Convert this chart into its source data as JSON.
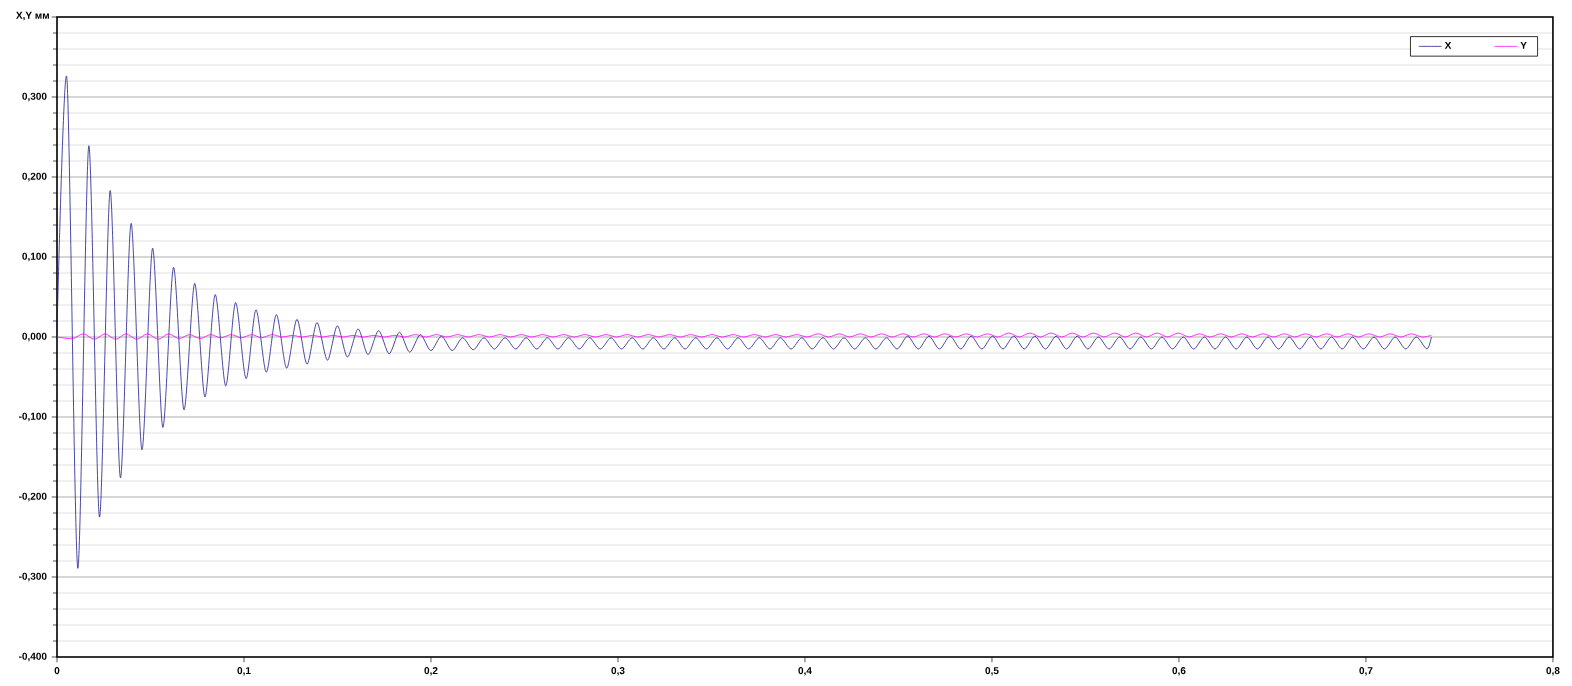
{
  "chart_data": {
    "type": "line",
    "ylabel": "X,Y мм",
    "xlim": [
      0,
      0.8
    ],
    "ylim": [
      -0.4,
      0.4
    ],
    "xticks": [
      0,
      {
        "value": 0.1,
        "label": "0,1"
      },
      {
        "value": 0.2,
        "label": "0,2"
      },
      {
        "value": 0.3,
        "label": "0,3"
      },
      {
        "value": 0.4,
        "label": "0,4"
      },
      {
        "value": 0.5,
        "label": "0,5"
      },
      {
        "value": 0.6,
        "label": "0,6"
      },
      {
        "value": 0.7,
        "label": "0,7"
      },
      {
        "value": 0.8,
        "label": "0,8"
      }
    ],
    "yticks": [
      {
        "value": -0.4,
        "label": "-0,400"
      },
      {
        "value": -0.3,
        "label": "-0,300"
      },
      {
        "value": -0.2,
        "label": "-0,200"
      },
      {
        "value": -0.1,
        "label": "-0,100"
      },
      {
        "value": 0,
        "label": "0,000"
      },
      {
        "value": 0.1,
        "label": "0,100"
      },
      {
        "value": 0.2,
        "label": "0,200"
      },
      {
        "value": 0.3,
        "label": "0,300"
      },
      {
        "value": 0.4,
        "label": null
      }
    ],
    "grid": "y",
    "legend": "top right",
    "marker": "none",
    "line_style": "solid",
    "series": [
      {
        "name": "X",
        "color": "#1a1a8c",
        "x": [
          0,
          0.0053,
          0.0111,
          0.017,
          0.0227,
          0.0284,
          0.0339,
          0.0396,
          0.0454,
          0.0511,
          0.0566,
          0.0623,
          0.0679,
          0.0736,
          0.0791,
          0.0846,
          0.0902,
          0.0955,
          0.1011,
          0.1064,
          0.1119,
          0.1173,
          0.1228,
          0.1283,
          0.1337,
          0.139,
          0.1446,
          0.1499,
          0.1553,
          0.161,
          0.1663,
          0.172,
          0.1776,
          0.1831,
          0.1886,
          0.1943,
          0.1999,
          0.2056,
          0.2113,
          0.2169,
          0.2226,
          0.2283,
          0.2339,
          0.2396,
          0.2453,
          0.2509,
          0.2566,
          0.2623,
          0.2679,
          0.2736,
          0.2793,
          0.2849,
          0.2906,
          0.2963,
          0.3019,
          0.3076,
          0.3133,
          0.3189,
          0.3246,
          0.3303,
          0.3359,
          0.3416,
          0.3473,
          0.3529,
          0.3586,
          0.3643,
          0.3699,
          0.3756,
          0.3813,
          0.3869,
          0.3926,
          0.3983,
          0.4039,
          0.4096,
          0.4153,
          0.4209,
          0.4266,
          0.4323,
          0.4379,
          0.4436,
          0.4493,
          0.4549,
          0.4606,
          0.4663,
          0.4719,
          0.4776,
          0.4833,
          0.4889,
          0.4946,
          0.5003,
          0.5059,
          0.5116,
          0.5173,
          0.5229,
          0.5286,
          0.5343,
          0.5399,
          0.5456,
          0.5513,
          0.5569,
          0.5626,
          0.5683,
          0.5739,
          0.5796,
          0.5853,
          0.5909,
          0.5966,
          0.6023,
          0.6079,
          0.6136,
          0.6193,
          0.6249,
          0.6306,
          0.6363,
          0.6419,
          0.6476,
          0.6533,
          0.6589,
          0.6646,
          0.6703,
          0.6759,
          0.6816,
          0.6873,
          0.6929,
          0.6986,
          0.7043,
          0.7099,
          0.7156,
          0.7213,
          0.7269,
          0.7326,
          0.735
        ],
        "values": [
          0.008,
          0.323,
          -0.289,
          0.239,
          -0.225,
          0.183,
          -0.176,
          0.142,
          -0.141,
          0.111,
          -0.113,
          0.087,
          -0.091,
          0.067,
          -0.075,
          0.053,
          -0.061,
          0.043,
          -0.052,
          0.034,
          -0.044,
          0.028,
          -0.039,
          0.022,
          -0.034,
          0.018,
          -0.029,
          0.014,
          -0.025,
          0.01,
          -0.022,
          0.008,
          -0.021,
          0.006,
          -0.019,
          0.003,
          -0.017,
          0.001,
          -0.017,
          -0.001,
          -0.016,
          -0.001,
          -0.015,
          -0.001,
          -0.015,
          -0.001,
          -0.015,
          -0.001,
          -0.015,
          -0.001,
          -0.015,
          -0.001,
          -0.015,
          -0.001,
          -0.015,
          -0.001,
          -0.015,
          -0.001,
          -0.015,
          -0.001,
          -0.015,
          -0.001,
          -0.015,
          -0.001,
          -0.015,
          -0.001,
          -0.015,
          -0.001,
          -0.015,
          -0.001,
          -0.015,
          -0.001,
          -0.015,
          -0.001,
          -0.015,
          -0.001,
          -0.015,
          -0.001,
          -0.015,
          -0.001,
          -0.015,
          0.001,
          -0.015,
          0.001,
          -0.015,
          0.001,
          -0.015,
          0.001,
          -0.015,
          0.001,
          -0.015,
          0.001,
          -0.015,
          0.001,
          -0.015,
          0.001,
          -0.015,
          0.001,
          -0.015,
          0,
          -0.015,
          0,
          -0.015,
          0,
          -0.015,
          0,
          -0.015,
          0,
          -0.015,
          0,
          -0.015,
          0,
          -0.015,
          0,
          -0.015,
          0,
          -0.015,
          0,
          -0.015,
          0,
          -0.015,
          0,
          -0.015,
          0,
          -0.015,
          0,
          -0.015,
          0,
          -0.015,
          0,
          -0.015,
          0
        ]
      },
      {
        "name": "Y",
        "color": "#ff00ff",
        "x": [
          0,
          0.0083,
          0.0141,
          0.02,
          0.0257,
          0.0314,
          0.0369,
          0.0426,
          0.0484,
          0.0541,
          0.0596,
          0.0653,
          0.0709,
          0.0766,
          0.0821,
          0.0876,
          0.0932,
          0.0985,
          0.1041,
          0.1094,
          0.1149,
          0.1203,
          0.1258,
          0.1313,
          0.1367,
          0.142,
          0.1476,
          0.1529,
          0.1583,
          0.164,
          0.1693,
          0.175,
          0.1806,
          0.1861,
          0.1916,
          0.1973,
          0.2029,
          0.2086,
          0.2143,
          0.2199,
          0.2256,
          0.2313,
          0.2369,
          0.2426,
          0.2483,
          0.2539,
          0.2596,
          0.2653,
          0.2709,
          0.2766,
          0.2823,
          0.2879,
          0.2936,
          0.2993,
          0.3049,
          0.3106,
          0.3163,
          0.3219,
          0.3276,
          0.3333,
          0.3389,
          0.3446,
          0.3503,
          0.3559,
          0.3616,
          0.3673,
          0.3729,
          0.3786,
          0.3843,
          0.3899,
          0.3956,
          0.4013,
          0.4069,
          0.4126,
          0.4183,
          0.4239,
          0.4296,
          0.4353,
          0.4409,
          0.4466,
          0.4523,
          0.4579,
          0.4636,
          0.4693,
          0.4749,
          0.4806,
          0.4863,
          0.4919,
          0.4976,
          0.5033,
          0.5089,
          0.5146,
          0.5203,
          0.5259,
          0.5316,
          0.5373,
          0.5429,
          0.5486,
          0.5543,
          0.5599,
          0.5656,
          0.5713,
          0.5769,
          0.5826,
          0.5883,
          0.5939,
          0.5996,
          0.6053,
          0.6109,
          0.6166,
          0.6223,
          0.6279,
          0.6336,
          0.6393,
          0.6449,
          0.6506,
          0.6563,
          0.6619,
          0.6676,
          0.6733,
          0.6789,
          0.6846,
          0.6903,
          0.6959,
          0.7016,
          0.7073,
          0.7129,
          0.7186,
          0.7243,
          0.7299,
          0.735
        ],
        "values": [
          0,
          -0.002,
          0.004,
          -0.003,
          0.004,
          -0.003,
          0.004,
          -0.003,
          0.004,
          -0.003,
          0.004,
          -0.002,
          0.003,
          -0.002,
          0.003,
          -0.001,
          0.003,
          -0.001,
          0.003,
          -0.001,
          0.003,
          0,
          0.002,
          0,
          0.002,
          0,
          0.002,
          0,
          0.002,
          0,
          0.002,
          0,
          0.002,
          0,
          0.003,
          0,
          0.003,
          0,
          0.003,
          0,
          0.003,
          0,
          0.003,
          0,
          0.003,
          0,
          0.003,
          0,
          0.003,
          0,
          0.003,
          0,
          0.003,
          0,
          0.003,
          0,
          0.003,
          0,
          0.003,
          0,
          0.003,
          0,
          0.003,
          0,
          0.003,
          0,
          0.003,
          0,
          0.003,
          0,
          0.003,
          0,
          0.004,
          0,
          0.004,
          0,
          0.004,
          0,
          0.004,
          0,
          0.004,
          0,
          0.004,
          0,
          0.004,
          0,
          0.004,
          0,
          0.004,
          0,
          0.005,
          0,
          0.005,
          0,
          0.005,
          0,
          0.005,
          0,
          0.005,
          0,
          0.005,
          0,
          0.005,
          0,
          0.005,
          0,
          0.005,
          0,
          0.004,
          0,
          0.004,
          0,
          0.004,
          0,
          0.004,
          0,
          0.004,
          0,
          0.004,
          0,
          0.004,
          0,
          0.004,
          0,
          0.004,
          0,
          0.004,
          0,
          0.004,
          0,
          0.002
        ]
      }
    ]
  }
}
